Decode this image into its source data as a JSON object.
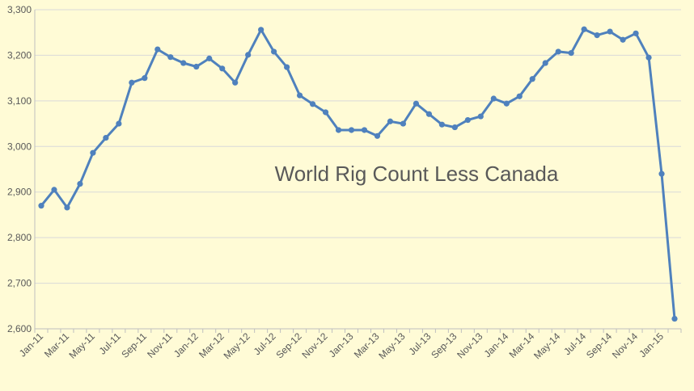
{
  "chart_data": {
    "type": "line",
    "title": "World Rig Count Less Canada",
    "xlabel": "",
    "ylabel": "",
    "ylim": [
      2600,
      3300
    ],
    "y_ticks": [
      2600,
      2700,
      2800,
      2900,
      3000,
      3100,
      3200,
      3300
    ],
    "y_tick_labels": [
      "2,600",
      "2,700",
      "2,800",
      "2,900",
      "3,000",
      "3,100",
      "3,200",
      "3,300"
    ],
    "x_tick_labels": [
      "Jan-11",
      "Mar-11",
      "May-11",
      "Jul-11",
      "Sep-11",
      "Nov-11",
      "Jan-12",
      "Mar-12",
      "May-12",
      "Jul-12",
      "Sep-12",
      "Nov-12",
      "Jan-13",
      "Mar-13",
      "May-13",
      "Jul-13",
      "Sep-13",
      "Nov-13",
      "Jan-14",
      "Mar-14",
      "May-14",
      "Jul-14",
      "Sep-14",
      "Nov-14",
      "Jan-15"
    ],
    "categories": [
      "Jan-11",
      "Feb-11",
      "Mar-11",
      "Apr-11",
      "May-11",
      "Jun-11",
      "Jul-11",
      "Aug-11",
      "Sep-11",
      "Oct-11",
      "Nov-11",
      "Dec-11",
      "Jan-12",
      "Feb-12",
      "Mar-12",
      "Apr-12",
      "May-12",
      "Jun-12",
      "Jul-12",
      "Aug-12",
      "Sep-12",
      "Oct-12",
      "Nov-12",
      "Dec-12",
      "Jan-13",
      "Feb-13",
      "Mar-13",
      "Apr-13",
      "May-13",
      "Jun-13",
      "Jul-13",
      "Aug-13",
      "Sep-13",
      "Oct-13",
      "Nov-13",
      "Dec-13",
      "Jan-14",
      "Feb-14",
      "Mar-14",
      "Apr-14",
      "May-14",
      "Jun-14",
      "Jul-14",
      "Aug-14",
      "Sep-14",
      "Oct-14",
      "Nov-14",
      "Dec-14",
      "Jan-15",
      "Feb-15"
    ],
    "series": [
      {
        "values": [
          2870,
          2905,
          2866,
          2918,
          2986,
          3019,
          3050,
          3140,
          3150,
          3213,
          3196,
          3183,
          3175,
          3193,
          3171,
          3140,
          3201,
          3256,
          3208,
          3174,
          3112,
          3093,
          3075,
          3036,
          3036,
          3036,
          3023,
          3055,
          3050,
          3094,
          3071,
          3048,
          3042,
          3058,
          3066,
          3105,
          3094,
          3110,
          3148,
          3183,
          3208,
          3205,
          3257,
          3244,
          3252,
          3234,
          3248,
          3195,
          2940,
          2622
        ],
        "color": "#4f81bd"
      }
    ],
    "grid": true,
    "gridline_color": "#d9d9d9",
    "axis_color": "#bfbfbf",
    "legend": "none"
  }
}
